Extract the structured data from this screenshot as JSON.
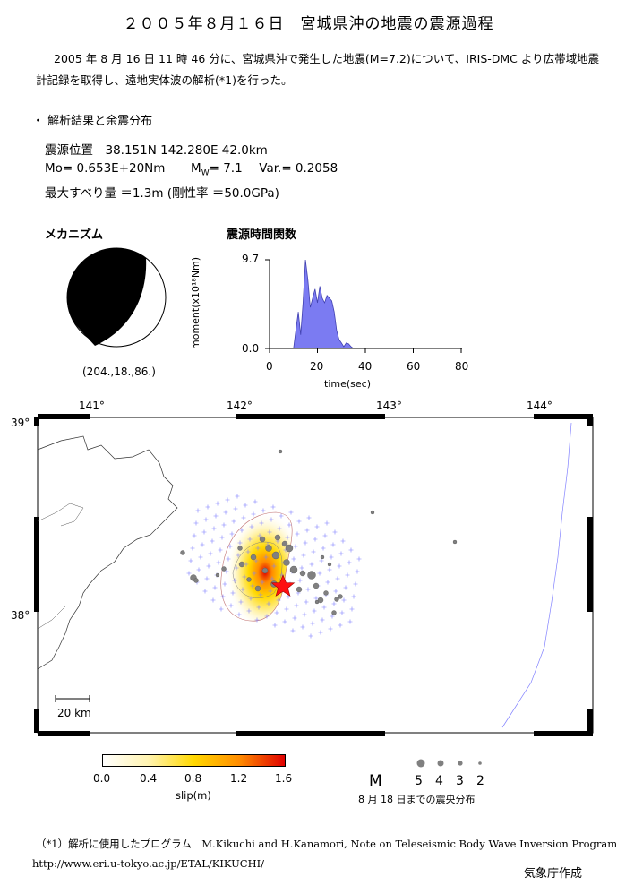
{
  "title": "２００５年８月１６日　宮城県沖の地震の震源過程",
  "intro": {
    "line1": "2005 年 8 月 16 日 11 時 46 分に、宮城県沖で発生した地震(M=7.2)について、IRIS-DMC より広帯域地震",
    "line2": "計記録を取得し、遠地実体波の解析(*1)を行った。"
  },
  "section": "・ 解析結果と余震分布",
  "params": {
    "hypocenter": "震源位置　38.151N  142.280E  42.0km",
    "mo": "Mo= 0.653E+20Nm",
    "mw_prefix": "M",
    "mw_sub": "W",
    "mw_value": "= 7.1",
    "var": "Var.= 0.2058",
    "slip": "最大すべり量 ＝1.3m (剛性率 ＝50.0GPa)"
  },
  "mechanism": {
    "label": "メカニズム",
    "caption": "(204.,18.,86.)"
  },
  "stf": {
    "label": "震源時間関数",
    "ylabel": "moment(x10¹⁸Nm)",
    "ytick_top": "9.7",
    "ytick_bottom": "0.0",
    "xlabel": "time(sec)",
    "xticks": [
      "0",
      "20",
      "40",
      "60",
      "80"
    ]
  },
  "map": {
    "lon_labels": [
      "141°",
      "142°",
      "143°",
      "144°"
    ],
    "lat_labels": [
      "39°",
      "38°"
    ],
    "scale": "20 km"
  },
  "colorbar": {
    "ticks": [
      "0.0",
      "0.4",
      "0.8",
      "1.2",
      "1.6"
    ],
    "label": "slip(m)",
    "colors": [
      "#ffffff",
      "#fff3b0",
      "#ffd800",
      "#ff8c00",
      "#e00000"
    ]
  },
  "legend": {
    "m": "M",
    "values": [
      "5",
      "4",
      "3",
      "2"
    ],
    "caption": "8 月 18 日までの震央分布"
  },
  "footnote": {
    "line1": "（*1）解析に使用したプログラム　M.Kikuchi and H.Kanamori, Note on Teleseismic Body Wave Inversion Program,",
    "line2": "http://www.eri.u-tokyo.ac.jp/ETAL/KIKUCHI/"
  },
  "credit": "気象庁作成",
  "chart_data": {
    "type": "area",
    "xlabel": "time(sec)",
    "ylabel": "moment(x10¹⁸Nm)",
    "xlim": [
      0,
      80
    ],
    "ylim": [
      0,
      9.7
    ],
    "x": [
      0,
      10,
      11,
      12,
      13,
      14,
      15,
      16,
      17,
      18,
      19,
      20,
      21,
      22,
      23,
      24,
      25,
      26,
      27,
      28,
      29,
      30,
      31,
      32,
      33,
      34,
      35,
      36,
      80
    ],
    "y": [
      0,
      0,
      2.0,
      4.0,
      1.5,
      5.0,
      9.7,
      7.5,
      4.5,
      5.5,
      6.5,
      5.0,
      6.8,
      5.5,
      5.0,
      5.8,
      5.5,
      5.2,
      4.0,
      2.0,
      1.0,
      0.6,
      0.2,
      0.6,
      0.5,
      0.2,
      0.0,
      0.0,
      0
    ]
  }
}
